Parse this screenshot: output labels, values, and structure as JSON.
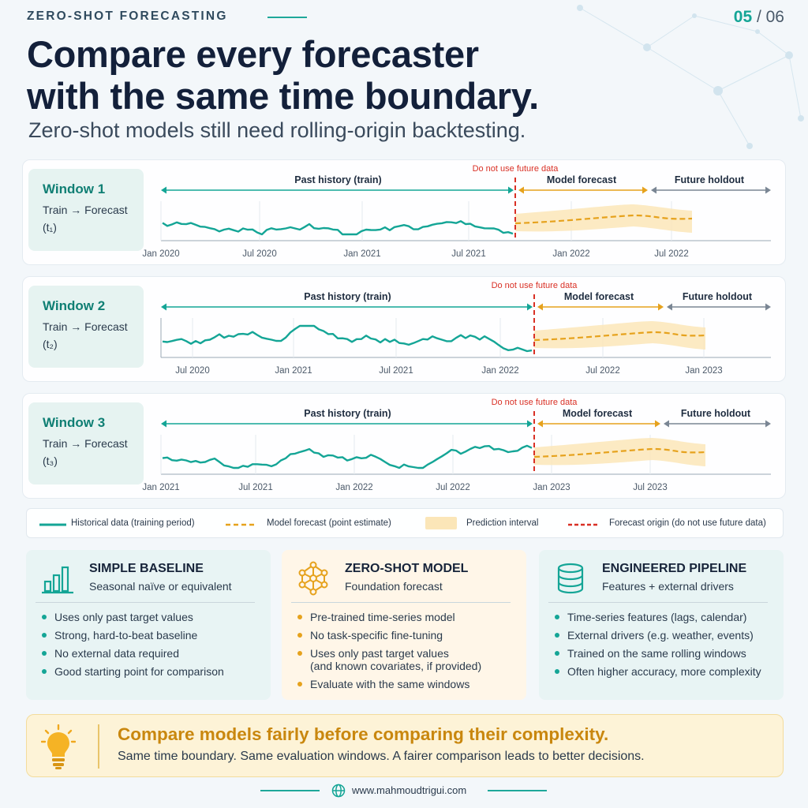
{
  "header": {
    "kicker": "ZERO-SHOT FORECASTING",
    "page_current": "05",
    "page_sep_total": " / 06",
    "title_line1": "Compare every forecaster",
    "title_line2": "with the same time boundary.",
    "subtitle": "Zero-shot models still need rolling-origin backtesting."
  },
  "windows": [
    {
      "name": "Window 1",
      "desc": "Train → Forecast",
      "t": "(t₁)",
      "warning": "Do not use future data",
      "train_label": "Past history (train)",
      "forecast_label": "Model forecast",
      "holdout_label": "Future holdout",
      "ticks": [
        "Jan 2020",
        "Jul 2020",
        "Jan 2021",
        "Jul 2021",
        "Jan 2022",
        "Jul 2022"
      ]
    },
    {
      "name": "Window 2",
      "desc": "Train → Forecast",
      "t": "(t₂)",
      "warning": "Do not use future data",
      "train_label": "Past history (train)",
      "forecast_label": "Model forecast",
      "holdout_label": "Future holdout",
      "ticks": [
        "Jul 2020",
        "Jan 2021",
        "Jul 2021",
        "Jan 2022",
        "Jul 2022",
        "Jan 2023"
      ]
    },
    {
      "name": "Window 3",
      "desc": "Train → Forecast",
      "t": "(t₃)",
      "warning": "Do not use future data",
      "train_label": "Past history (train)",
      "forecast_label": "Model forecast",
      "holdout_label": "Future holdout",
      "ticks": [
        "Jan 2021",
        "Jul 2021",
        "Jan 2022",
        "Jul 2022",
        "Jan 2023",
        "Jul 2023"
      ]
    }
  ],
  "legend": {
    "historical": "Historical data (training period)",
    "forecast": "Model forecast (point estimate)",
    "interval": "Prediction interval",
    "origin": "Forecast origin (do not use future data)"
  },
  "panels": [
    {
      "icon": "bar-chart-icon",
      "title": "SIMPLE BASELINE",
      "subtitle": "Seasonal naïve or equivalent",
      "items": [
        "Uses only past target values",
        "Strong, hard-to-beat baseline",
        "No external data required",
        "Good starting point for comparison"
      ]
    },
    {
      "icon": "network-icon",
      "title": "ZERO-SHOT MODEL",
      "subtitle": "Foundation forecast",
      "items": [
        "Pre-trained time-series model",
        "No task-specific fine-tuning",
        "Uses only past target values\n(and known covariates, if provided)",
        "Evaluate with the same windows"
      ]
    },
    {
      "icon": "database-icon",
      "title": "ENGINEERED PIPELINE",
      "subtitle": "Features + external drivers",
      "items": [
        "Time-series features (lags, calendar)",
        "External drivers (e.g. weather, events)",
        "Trained on the same rolling windows",
        "Often higher accuracy, more complexity"
      ]
    }
  ],
  "callout": {
    "title": "Compare models fairly before comparing their complexity.",
    "text": "Same time boundary. Same evaluation windows. A fairer comparison leads to better decisions."
  },
  "footer": {
    "url": "www.mahmoudtrigui.com"
  },
  "colors": {
    "teal": "#14a596",
    "orange": "#e6a21d",
    "red": "#d93025",
    "interval": "#fbe6b8"
  }
}
